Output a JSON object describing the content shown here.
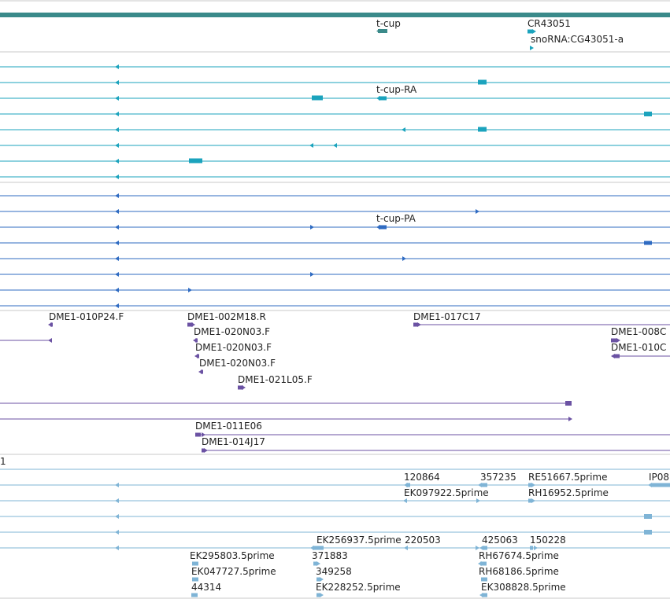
{
  "colors": {
    "gene": "#3a8a8a",
    "transcript": "#1ba3bd",
    "protein": "#2f6bc2",
    "clone": "#6b52a3",
    "est": "#7fb4d6",
    "divider": "#c8c8c8"
  },
  "tracks": {
    "gene": {
      "labels": [
        "t-cup",
        "CR43051",
        "snoRNA:CG43051-a"
      ]
    },
    "transcripts": {
      "labels": [
        "t-cup-RA"
      ]
    },
    "proteins": {
      "labels": [
        "t-cup-PA"
      ]
    },
    "clones": {
      "labels": [
        "DME1-010P24.F",
        "DME1-002M18.R",
        "DME1-017C17",
        "DME1-020N03.F",
        "DME1-020N03.F",
        "DME1-020N03.F",
        "DME1-021L05.F",
        "DME1-008C",
        "DME1-010C",
        "DME1-011E06",
        "DME1-014J17"
      ]
    },
    "ests": {
      "stub": "1",
      "labels": [
        "120864",
        "357235",
        "RE51667.5prime",
        "IP08",
        "EK097922.5prime",
        "RH16952.5prime",
        "EK256937.5prime",
        "220503",
        "425063",
        "150228",
        "EK295803.5prime",
        "371883",
        "RH67674.5prime",
        "EK047727.5prime",
        "349258",
        "RH68186.5prime",
        "44314",
        "EK228252.5prime",
        "EK308828.5prime"
      ]
    }
  }
}
